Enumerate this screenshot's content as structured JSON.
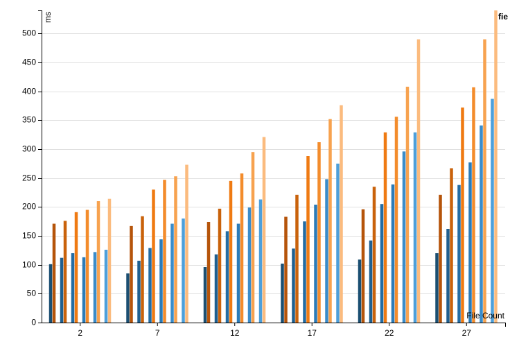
{
  "chart_data": {
    "type": "bar",
    "y_label": "ms",
    "x_label": "File Count",
    "legend_label": "fie",
    "categories": [
      "2",
      "7",
      "12",
      "17",
      "22",
      "27"
    ],
    "ylim": [
      0,
      540
    ],
    "yticks": [
      0,
      50,
      100,
      150,
      200,
      250,
      300,
      350,
      400,
      450,
      500
    ],
    "grid": true,
    "series": [
      {
        "color": "#1b4f72",
        "values": [
          101,
          85,
          96,
          102,
          109,
          120
        ]
      },
      {
        "color": "#b5540a",
        "values": [
          171,
          167,
          174,
          183,
          196,
          221
        ]
      },
      {
        "color": "#1f5f8f",
        "values": [
          112,
          107,
          118,
          128,
          142,
          162
        ]
      },
      {
        "color": "#c9620b",
        "values": [
          176,
          184,
          197,
          221,
          235,
          267
        ]
      },
      {
        "color": "#236ca3",
        "values": [
          120,
          129,
          158,
          175,
          205,
          238
        ]
      },
      {
        "color": "#ef7a12",
        "values": [
          191,
          230,
          245,
          288,
          329,
          372
        ]
      },
      {
        "color": "#2b7bb8",
        "values": [
          113,
          144,
          171,
          204,
          239,
          277
        ]
      },
      {
        "color": "#f38c2c",
        "values": [
          195,
          247,
          258,
          312,
          356,
          407
        ]
      },
      {
        "color": "#3a8cca",
        "values": [
          122,
          171,
          199,
          248,
          296,
          341
        ]
      },
      {
        "color": "#f7a24f",
        "values": [
          210,
          253,
          295,
          352,
          408,
          490
        ]
      },
      {
        "color": "#4d9fda",
        "values": [
          126,
          180,
          213,
          275,
          329,
          387
        ]
      },
      {
        "color": "#fbbb7e",
        "values": [
          214,
          273,
          321,
          376,
          490,
          540
        ]
      }
    ]
  }
}
